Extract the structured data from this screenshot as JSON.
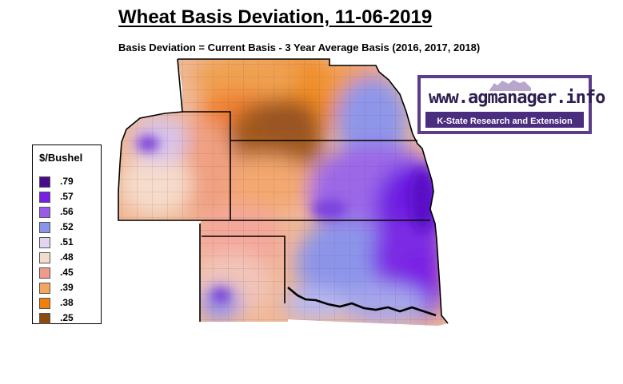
{
  "title": "Wheat Basis Deviation, 11-06-2019",
  "subtitle": "Basis Deviation = Current Basis - 3 Year Average Basis (2016, 2017, 2018)",
  "logo": {
    "site": "www.agmanager.info",
    "org": "K-State Research and Extension",
    "icon": "wildcat-icon",
    "colors": {
      "border": "#5b3d8a",
      "bar": "#4b2d7f"
    }
  },
  "legend": {
    "title": "$/Bushel",
    "items": [
      {
        "label": ".79",
        "color": "#4a0a8c"
      },
      {
        "label": ".57",
        "color": "#7a1ee6"
      },
      {
        "label": ".56",
        "color": "#9a5ae8"
      },
      {
        "label": ".52",
        "color": "#8a94ea"
      },
      {
        "label": ".51",
        "color": "#e4d4f4"
      },
      {
        "label": ".48",
        "color": "#f4dccb"
      },
      {
        "label": ".45",
        "color": "#f09a8a"
      },
      {
        "label": ".39",
        "color": "#f4a65e"
      },
      {
        "label": ".38",
        "color": "#f0800a"
      },
      {
        "label": ".25",
        "color": "#8a4a10"
      }
    ]
  }
}
